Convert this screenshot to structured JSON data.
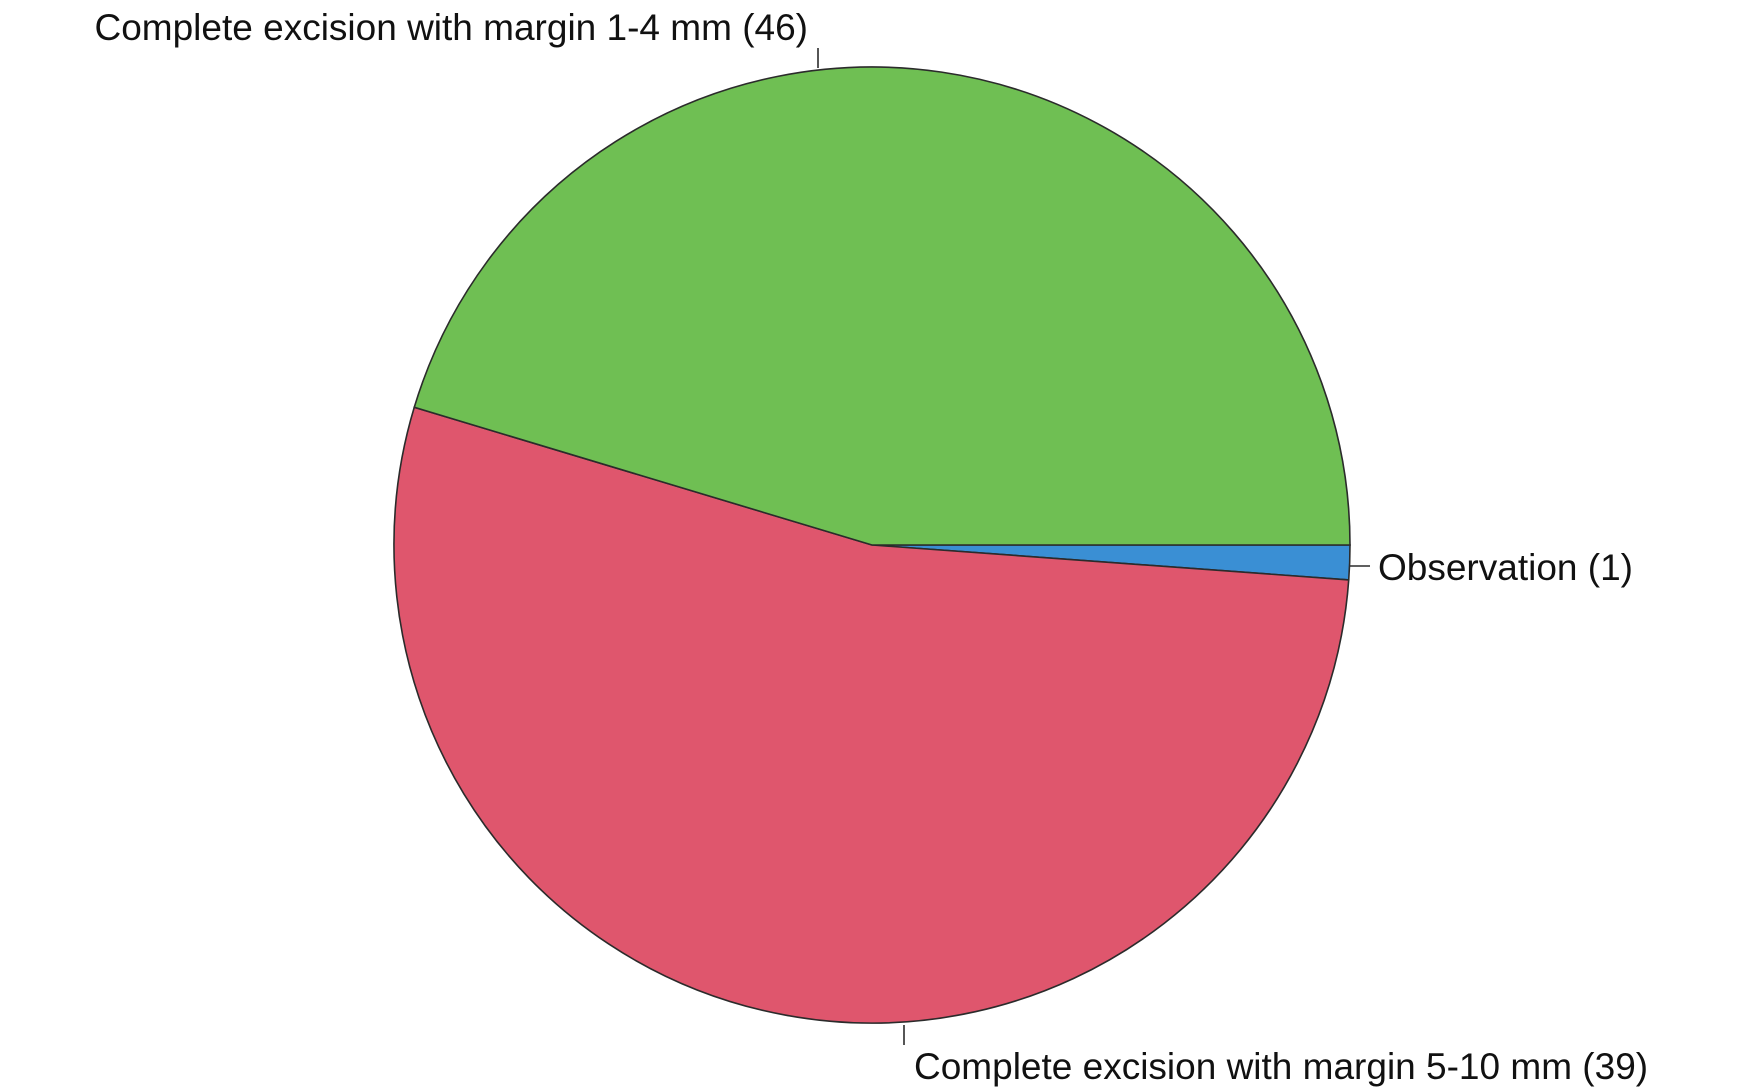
{
  "chart_data": {
    "type": "pie",
    "title": "",
    "slices": [
      {
        "label": "Observation (1)",
        "category": "Observation",
        "value": 1,
        "color": "#3a8fd4"
      },
      {
        "label": "Complete excision with margin 1-4 mm (46)",
        "category": "Complete excision with margin 1-4 mm",
        "value": 46,
        "color": "#df566d"
      },
      {
        "label": "Complete excision with margin 5-10 mm (39)",
        "category": "Complete excision with margin 5-10 mm",
        "value": 39,
        "color": "#6fbf53"
      }
    ],
    "start_angle_deg": 0,
    "direction": "clockwise",
    "legend": "none"
  }
}
